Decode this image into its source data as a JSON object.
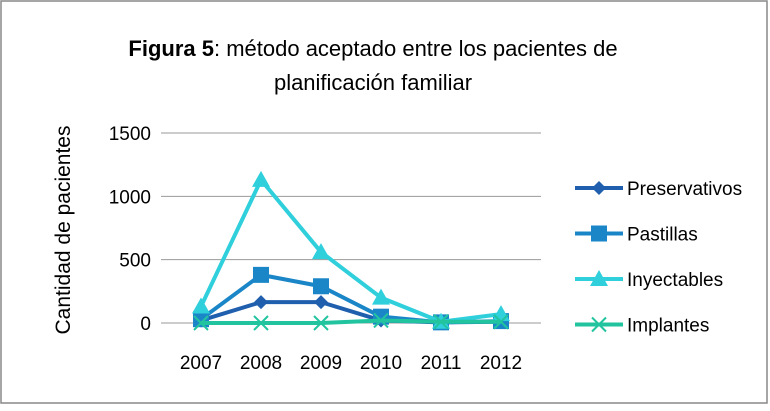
{
  "chart_data": {
    "type": "line",
    "title": [
      "Figura 5",
      ": método aceptado entre los pacientes de",
      "planificación familiar"
    ],
    "y_label": "Cantidad de pacientes",
    "categories": [
      "2007",
      "2008",
      "2009",
      "2010",
      "2011",
      "2012"
    ],
    "series": [
      {
        "name": "Preservativos",
        "color": "#1f5fad",
        "marker": "diamond",
        "values": [
          20,
          165,
          165,
          20,
          5,
          10
        ]
      },
      {
        "name": "Pastillas",
        "color": "#1a86c8",
        "marker": "square",
        "values": [
          30,
          380,
          290,
          50,
          5,
          15
        ]
      },
      {
        "name": "Inyectables",
        "color": "#2fcfdc",
        "marker": "triangle",
        "values": [
          130,
          1130,
          560,
          200,
          10,
          70
        ]
      },
      {
        "name": "Implantes",
        "color": "#22c49f",
        "marker": "x",
        "values": [
          0,
          0,
          0,
          20,
          10,
          10
        ]
      }
    ],
    "ylim": [
      0,
      1500
    ],
    "yticks": [
      0,
      500,
      1000,
      1500
    ],
    "grid": true,
    "legend": "right"
  }
}
